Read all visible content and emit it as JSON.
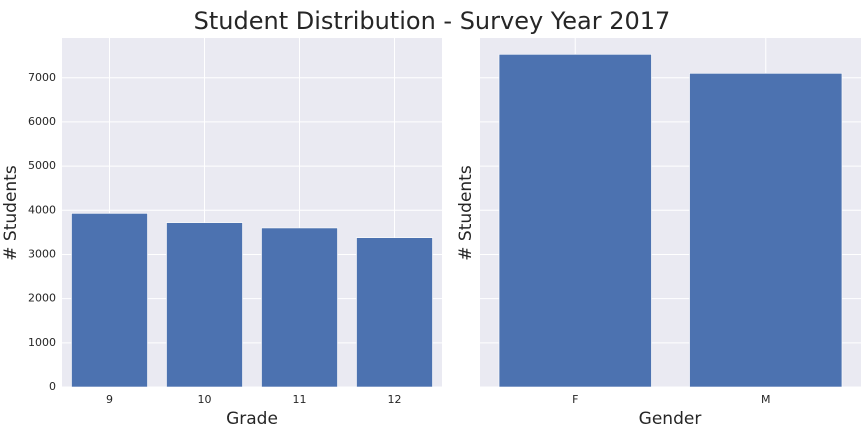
{
  "figure": {
    "title": "Student Distribution - Survey Year 2017"
  },
  "chart_data": [
    {
      "type": "bar",
      "categories": [
        "9",
        "10",
        "11",
        "12"
      ],
      "values": [
        3930,
        3720,
        3600,
        3380
      ],
      "title": "",
      "xlabel": "Grade",
      "ylabel": "# Students",
      "ylim": [
        0,
        7900
      ],
      "yticks": [
        0,
        1000,
        2000,
        3000,
        4000,
        5000,
        6000,
        7000
      ],
      "ytick_labels_shown": true,
      "grid": true,
      "bar_color": "#4c72b0",
      "background_color": "#eaeaf2"
    },
    {
      "type": "bar",
      "categories": [
        "F",
        "M"
      ],
      "values": [
        7530,
        7100
      ],
      "title": "",
      "xlabel": "Gender",
      "ylabel": "# Students",
      "ylim": [
        0,
        7900
      ],
      "yticks": [
        0,
        1000,
        2000,
        3000,
        4000,
        5000,
        6000,
        7000
      ],
      "ytick_labels_shown": false,
      "grid": true,
      "bar_color": "#4c72b0",
      "background_color": "#eaeaf2"
    }
  ]
}
